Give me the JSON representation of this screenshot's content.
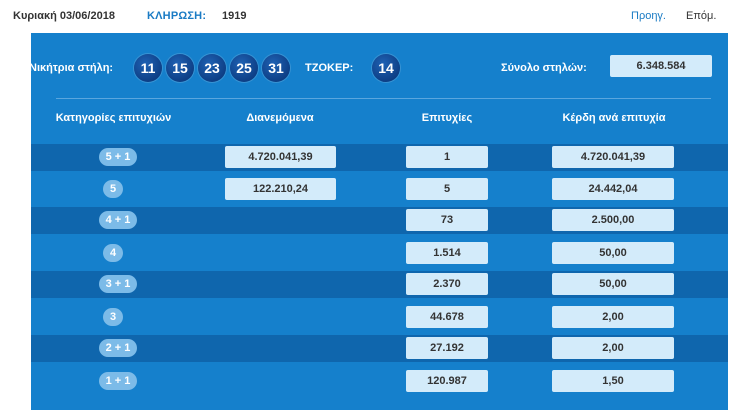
{
  "header": {
    "date": "Κυριακή 03/06/2018",
    "draw_label": "ΚΛΗΡΩΣΗ:",
    "draw_number": "1919",
    "prev_label": "Προηγ.",
    "next_label": "Επόμ."
  },
  "winning": {
    "label": "Νικήτρια στήλη:",
    "numbers": [
      "11",
      "15",
      "23",
      "25",
      "31"
    ],
    "joker_label": "ΤΖΟΚΕΡ:",
    "joker": "14",
    "total_label": "Σύνολο στηλών:",
    "total": "6.348.584"
  },
  "table": {
    "headers": [
      "Κατηγορίες επιτυχιών",
      "Διανεμόμενα",
      "Επιτυχίες",
      "Κέρδη ανά επιτυχία"
    ],
    "rows": [
      {
        "category": "5 + 1",
        "distributed": "4.720.041,39",
        "winners": "1",
        "prize": "4.720.041,39"
      },
      {
        "category": "5",
        "distributed": "122.210,24",
        "winners": "5",
        "prize": "24.442,04"
      },
      {
        "category": "4 + 1",
        "distributed": "",
        "winners": "73",
        "prize": "2.500,00"
      },
      {
        "category": "4",
        "distributed": "",
        "winners": "1.514",
        "prize": "50,00"
      },
      {
        "category": "3 + 1",
        "distributed": "",
        "winners": "2.370",
        "prize": "50,00"
      },
      {
        "category": "3",
        "distributed": "",
        "winners": "44.678",
        "prize": "2,00"
      },
      {
        "category": "2 + 1",
        "distributed": "",
        "winners": "27.192",
        "prize": "2,00"
      },
      {
        "category": "1 + 1",
        "distributed": "",
        "winners": "120.987",
        "prize": "1,50"
      }
    ]
  },
  "colors": {
    "panel": "#1580cc",
    "row_dark": "#0f66ad",
    "cell_bg": "#d3ebfa",
    "pill_bg": "#7cbbe8",
    "ball_bg": "#0e3f86",
    "link": "#1a7bc4"
  }
}
